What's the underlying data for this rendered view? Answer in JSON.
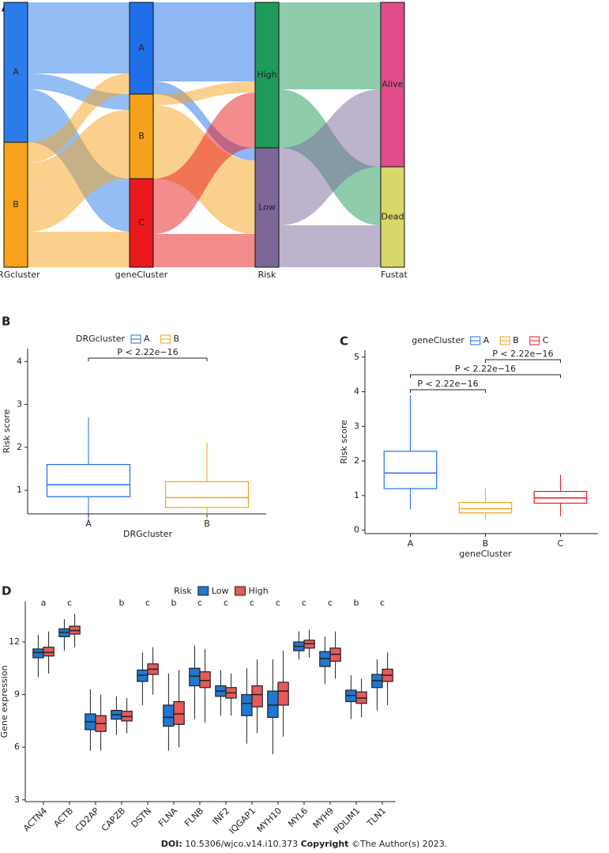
{
  "chart_data": [
    {
      "type": "sankey",
      "panel": "A",
      "stages": [
        {
          "name": "CRGcluster",
          "nodes": [
            "A",
            "B"
          ],
          "colors": [
            "#2a7de8",
            "#f7a21b"
          ]
        },
        {
          "name": "geneCluster",
          "nodes": [
            "A",
            "B",
            "C"
          ],
          "colors": [
            "#1f6fe8",
            "#f5a11c",
            "#e8191c"
          ]
        },
        {
          "name": "Risk",
          "nodes": [
            "High",
            "Low"
          ],
          "colors": [
            "#1e9a5a",
            "#7b6899"
          ]
        },
        {
          "name": "Fustat",
          "nodes": [
            "Alive",
            "Dead"
          ],
          "colors": [
            "#e14c8a",
            "#d9d66a"
          ]
        }
      ],
      "flows": [
        [
          [
            90,
            20,
            67
          ],
          [
            26,
            87,
            45
          ]
        ],
        [
          [
            100,
            16
          ],
          [
            14,
            93
          ],
          [
            70,
            42
          ]
        ],
        [
          [
            110,
            74
          ],
          [
            98,
            53
          ]
        ]
      ]
    },
    {
      "type": "box",
      "panel": "B",
      "legend_title": "DRGcluster",
      "x_label": "DRGcluster",
      "y_label": "Risk score",
      "categories": [
        "A",
        "B"
      ],
      "colors": [
        "#1f6fe8",
        "#f5a11c"
      ],
      "values": [
        [
          0.3,
          0.85,
          1.13,
          1.6,
          2.7
        ],
        [
          0.3,
          0.6,
          0.83,
          1.2,
          2.1
        ]
      ],
      "ylim": [
        0.45,
        4.3
      ],
      "yticks": [
        1,
        2,
        3,
        4
      ],
      "comparisons": [
        {
          "pair": [
            0,
            1
          ],
          "label": "P < 2.22e−16"
        }
      ]
    },
    {
      "type": "box",
      "panel": "C",
      "legend_title": "geneCluster",
      "x_label": "geneCluster",
      "y_label": "Risk score",
      "categories": [
        "A",
        "B",
        "C"
      ],
      "colors": [
        "#1f6fe8",
        "#f5a11c",
        "#e8191c"
      ],
      "values": [
        [
          0.6,
          1.2,
          1.65,
          2.28,
          3.9
        ],
        [
          0.3,
          0.5,
          0.62,
          0.8,
          1.2
        ],
        [
          0.4,
          0.78,
          0.93,
          1.12,
          1.6
        ]
      ],
      "ylim": [
        -0.1,
        5.2
      ],
      "yticks": [
        0,
        1,
        2,
        3,
        4,
        5
      ],
      "comparisons": [
        {
          "pair": [
            0,
            1
          ],
          "label": "P < 2.22e−16"
        },
        {
          "pair": [
            0,
            2
          ],
          "label": "P < 2.22e−16"
        },
        {
          "pair": [
            1,
            2
          ],
          "label": "P < 2.22e−16"
        }
      ]
    },
    {
      "type": "grouped_box",
      "panel": "D",
      "legend_title": "Risk",
      "y_label": "Gene expression",
      "categories": [
        "ACTN4",
        "ACTB",
        "CD2AP",
        "CAPZB",
        "DSTN",
        "FLNA",
        "FLNB",
        "INF2",
        "IQGAP1",
        "MYH10",
        "MYL6",
        "MYH9",
        "PDLIM1",
        "TLN1"
      ],
      "significance": [
        "a",
        "c",
        null,
        "b",
        "c",
        "b",
        "c",
        "c",
        "c",
        "c",
        "c",
        "c",
        "b",
        "c"
      ],
      "series": [
        {
          "name": "Low",
          "color": "#1f78d1",
          "values": [
            [
              10.0,
              11.1,
              11.4,
              11.6,
              12.4
            ],
            [
              11.5,
              12.3,
              12.55,
              12.75,
              13.3
            ],
            [
              5.8,
              7.0,
              7.45,
              7.9,
              9.3
            ],
            [
              6.7,
              7.6,
              7.85,
              8.1,
              8.9
            ],
            [
              8.4,
              9.75,
              10.1,
              10.4,
              11.4
            ],
            [
              5.8,
              7.2,
              7.7,
              8.4,
              10.2
            ],
            [
              7.6,
              9.5,
              10.05,
              10.5,
              11.8
            ],
            [
              7.8,
              8.9,
              9.2,
              9.5,
              10.4
            ],
            [
              6.2,
              7.8,
              8.5,
              9.0,
              10.5
            ],
            [
              5.6,
              7.7,
              8.4,
              9.2,
              11.0
            ],
            [
              11.0,
              11.5,
              11.75,
              12.0,
              12.6
            ],
            [
              9.6,
              10.6,
              11.05,
              11.45,
              12.3
            ],
            [
              7.6,
              8.6,
              8.95,
              9.25,
              10.1
            ],
            [
              8.1,
              9.4,
              9.8,
              10.15,
              11.0
            ]
          ]
        },
        {
          "name": "High",
          "color": "#e8595a",
          "values": [
            [
              10.2,
              11.2,
              11.4,
              11.7,
              12.6
            ],
            [
              11.7,
              12.45,
              12.65,
              12.9,
              13.6
            ],
            [
              5.8,
              6.9,
              7.35,
              7.8,
              9.0
            ],
            [
              6.8,
              7.5,
              7.75,
              8.05,
              8.8
            ],
            [
              9.0,
              10.15,
              10.45,
              10.75,
              11.7
            ],
            [
              6.0,
              7.3,
              7.9,
              8.6,
              10.4
            ],
            [
              7.4,
              9.4,
              9.8,
              10.3,
              11.6
            ],
            [
              7.8,
              8.8,
              9.1,
              9.4,
              10.2
            ],
            [
              6.8,
              8.3,
              9.0,
              9.5,
              11.0
            ],
            [
              6.6,
              8.4,
              9.2,
              9.7,
              11.5
            ],
            [
              11.1,
              11.65,
              11.9,
              12.1,
              12.7
            ],
            [
              9.9,
              10.9,
              11.3,
              11.65,
              12.6
            ],
            [
              7.7,
              8.5,
              8.8,
              9.15,
              9.9
            ],
            [
              8.4,
              9.75,
              10.1,
              10.45,
              11.4
            ]
          ]
        }
      ],
      "ylim": [
        2.9,
        14.3
      ],
      "yticks": [
        3,
        6,
        9,
        12
      ]
    }
  ],
  "footer": {
    "doi_label": "DOI:",
    "doi": "10.5306/wjco.v14.i10.373",
    "copyright_label": "Copyright",
    "copyright": "©The Author(s) 2023."
  }
}
